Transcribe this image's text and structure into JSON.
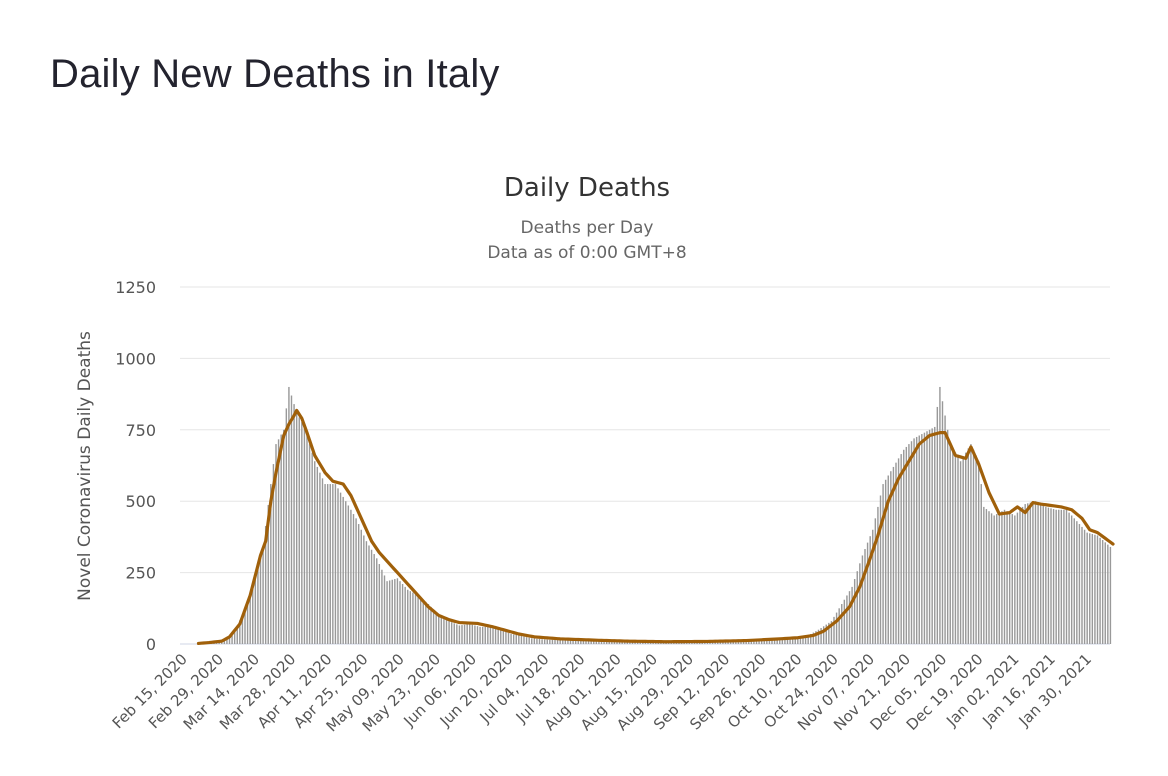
{
  "page": {
    "title": "Daily New Deaths in Italy"
  },
  "colors": {
    "bars": "#999999",
    "line": "#A0600A",
    "grid": "#e6e6e6",
    "text": "#555555",
    "title": "#333333"
  },
  "chart_data": {
    "type": "bar",
    "title": "Daily Deaths",
    "subtitle_lines": [
      "Deaths per Day",
      "Data as of 0:00 GMT+8"
    ],
    "ylabel": "Novel Coronavirus Daily Deaths",
    "xlabel": "",
    "ylim": [
      0,
      1250
    ],
    "yticks": [
      0,
      250,
      500,
      750,
      1000,
      1250
    ],
    "grid": true,
    "x_start": "2020-02-15",
    "x_tick_labels": [
      "Feb 15, 2020",
      "Feb 29, 2020",
      "Mar 14, 2020",
      "Mar 28, 2020",
      "Apr 11, 2020",
      "Apr 25, 2020",
      "May 09, 2020",
      "May 23, 2020",
      "Jun 06, 2020",
      "Jun 20, 2020",
      "Jul 04, 2020",
      "Jul 18, 2020",
      "Aug 01, 2020",
      "Aug 15, 2020",
      "Aug 29, 2020",
      "Sep 12, 2020",
      "Sep 26, 2020",
      "Oct 10, 2020",
      "Oct 24, 2020",
      "Nov 07, 2020",
      "Nov 21, 2020",
      "Dec 05, 2020",
      "Dec 19, 2020",
      "Jan 02, 2021",
      "Jan 16, 2021",
      "Jan 30, 2021"
    ],
    "series": [
      {
        "type": "bar",
        "anchors": [
          [
            "2020-02-15",
            0
          ],
          [
            "2020-02-21",
            0
          ],
          [
            "2020-02-25",
            5
          ],
          [
            "2020-03-01",
            12
          ],
          [
            "2020-03-05",
            30
          ],
          [
            "2020-03-09",
            100
          ],
          [
            "2020-03-13",
            200
          ],
          [
            "2020-03-17",
            340
          ],
          [
            "2020-03-20",
            560
          ],
          [
            "2020-03-22",
            700
          ],
          [
            "2020-03-25",
            750
          ],
          [
            "2020-03-27",
            900
          ],
          [
            "2020-03-30",
            810
          ],
          [
            "2020-04-02",
            760
          ],
          [
            "2020-04-06",
            640
          ],
          [
            "2020-04-10",
            560
          ],
          [
            "2020-04-14",
            560
          ],
          [
            "2020-04-18",
            500
          ],
          [
            "2020-04-22",
            440
          ],
          [
            "2020-04-26",
            360
          ],
          [
            "2020-04-30",
            300
          ],
          [
            "2020-05-04",
            220
          ],
          [
            "2020-05-08",
            230
          ],
          [
            "2020-05-12",
            190
          ],
          [
            "2020-05-16",
            170
          ],
          [
            "2020-05-20",
            140
          ],
          [
            "2020-05-24",
            100
          ],
          [
            "2020-05-28",
            80
          ],
          [
            "2020-06-01",
            65
          ],
          [
            "2020-06-05",
            70
          ],
          [
            "2020-06-09",
            60
          ],
          [
            "2020-06-13",
            60
          ],
          [
            "2020-06-17",
            50
          ],
          [
            "2020-06-21",
            35
          ],
          [
            "2020-06-25",
            28
          ],
          [
            "2020-06-29",
            20
          ],
          [
            "2020-07-05",
            15
          ],
          [
            "2020-07-15",
            12
          ],
          [
            "2020-07-25",
            10
          ],
          [
            "2020-08-05",
            7
          ],
          [
            "2020-08-20",
            6
          ],
          [
            "2020-09-01",
            7
          ],
          [
            "2020-09-10",
            10
          ],
          [
            "2020-09-20",
            14
          ],
          [
            "2020-09-30",
            18
          ],
          [
            "2020-10-08",
            21
          ],
          [
            "2020-10-14",
            30
          ],
          [
            "2020-10-18",
            50
          ],
          [
            "2020-10-23",
            80
          ],
          [
            "2020-10-27",
            140
          ],
          [
            "2020-10-31",
            200
          ],
          [
            "2020-11-04",
            310
          ],
          [
            "2020-11-08",
            400
          ],
          [
            "2020-11-12",
            560
          ],
          [
            "2020-11-16",
            620
          ],
          [
            "2020-11-20",
            680
          ],
          [
            "2020-11-24",
            720
          ],
          [
            "2020-11-28",
            740
          ],
          [
            "2020-12-02",
            760
          ],
          [
            "2020-12-04",
            900
          ],
          [
            "2020-12-08",
            700
          ],
          [
            "2020-12-12",
            640
          ],
          [
            "2020-12-16",
            700
          ],
          [
            "2020-12-19",
            640
          ],
          [
            "2020-12-21",
            480
          ],
          [
            "2020-12-25",
            450
          ],
          [
            "2020-12-29",
            470
          ],
          [
            "2021-01-02",
            450
          ],
          [
            "2021-01-06",
            490
          ],
          [
            "2021-01-10",
            500
          ],
          [
            "2021-01-14",
            480
          ],
          [
            "2021-01-18",
            470
          ],
          [
            "2021-01-22",
            470
          ],
          [
            "2021-01-26",
            430
          ],
          [
            "2021-01-30",
            390
          ],
          [
            "2021-02-03",
            380
          ],
          [
            "2021-02-08",
            340
          ]
        ]
      },
      {
        "type": "line",
        "anchors": [
          [
            "2020-02-21",
            2
          ],
          [
            "2020-02-25",
            5
          ],
          [
            "2020-03-01",
            10
          ],
          [
            "2020-03-04",
            25
          ],
          [
            "2020-03-08",
            70
          ],
          [
            "2020-03-12",
            170
          ],
          [
            "2020-03-16",
            310
          ],
          [
            "2020-03-18",
            360
          ],
          [
            "2020-03-20",
            500
          ],
          [
            "2020-03-22",
            600
          ],
          [
            "2020-03-25",
            730
          ],
          [
            "2020-03-27",
            770
          ],
          [
            "2020-03-29",
            800
          ],
          [
            "2020-03-30",
            818
          ],
          [
            "2020-04-01",
            790
          ],
          [
            "2020-04-03",
            740
          ],
          [
            "2020-04-06",
            660
          ],
          [
            "2020-04-10",
            600
          ],
          [
            "2020-04-13",
            570
          ],
          [
            "2020-04-17",
            560
          ],
          [
            "2020-04-20",
            520
          ],
          [
            "2020-04-24",
            440
          ],
          [
            "2020-04-28",
            360
          ],
          [
            "2020-05-01",
            320
          ],
          [
            "2020-05-04",
            290
          ],
          [
            "2020-05-08",
            250
          ],
          [
            "2020-05-12",
            210
          ],
          [
            "2020-05-16",
            170
          ],
          [
            "2020-05-20",
            130
          ],
          [
            "2020-05-24",
            100
          ],
          [
            "2020-05-28",
            85
          ],
          [
            "2020-06-01",
            75
          ],
          [
            "2020-06-08",
            72
          ],
          [
            "2020-06-14",
            60
          ],
          [
            "2020-06-18",
            50
          ],
          [
            "2020-06-24",
            35
          ],
          [
            "2020-06-30",
            25
          ],
          [
            "2020-07-10",
            18
          ],
          [
            "2020-07-25",
            13
          ],
          [
            "2020-08-05",
            10
          ],
          [
            "2020-08-20",
            8
          ],
          [
            "2020-09-05",
            9
          ],
          [
            "2020-09-20",
            12
          ],
          [
            "2020-10-01",
            17
          ],
          [
            "2020-10-10",
            22
          ],
          [
            "2020-10-16",
            30
          ],
          [
            "2020-10-20",
            45
          ],
          [
            "2020-10-25",
            80
          ],
          [
            "2020-10-30",
            130
          ],
          [
            "2020-11-03",
            200
          ],
          [
            "2020-11-07",
            300
          ],
          [
            "2020-11-10",
            380
          ],
          [
            "2020-11-14",
            500
          ],
          [
            "2020-11-18",
            580
          ],
          [
            "2020-11-22",
            640
          ],
          [
            "2020-11-26",
            700
          ],
          [
            "2020-11-30",
            730
          ],
          [
            "2020-12-04",
            740
          ],
          [
            "2020-12-06",
            740
          ],
          [
            "2020-12-10",
            660
          ],
          [
            "2020-12-14",
            650
          ],
          [
            "2020-12-16",
            690
          ],
          [
            "2020-12-19",
            630
          ],
          [
            "2020-12-23",
            530
          ],
          [
            "2020-12-27",
            455
          ],
          [
            "2020-12-31",
            460
          ],
          [
            "2021-01-03",
            480
          ],
          [
            "2021-01-06",
            460
          ],
          [
            "2021-01-09",
            495
          ],
          [
            "2021-01-12",
            490
          ],
          [
            "2021-01-16",
            485
          ],
          [
            "2021-01-20",
            480
          ],
          [
            "2021-01-24",
            470
          ],
          [
            "2021-01-28",
            440
          ],
          [
            "2021-01-31",
            400
          ],
          [
            "2021-02-03",
            390
          ],
          [
            "2021-02-06",
            370
          ],
          [
            "2021-02-09",
            350
          ]
        ]
      }
    ]
  }
}
